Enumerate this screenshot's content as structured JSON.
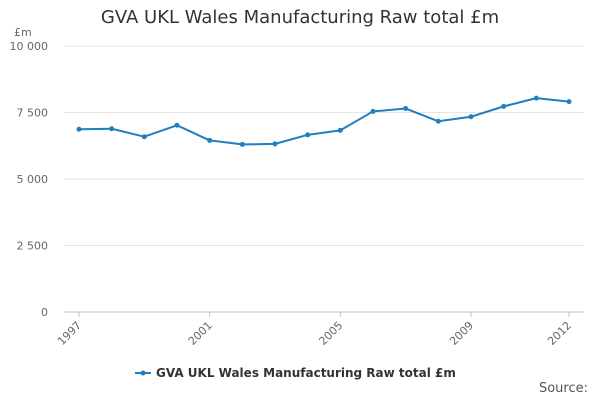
{
  "chart_data": {
    "type": "line",
    "title": "GVA UKL Wales Manufacturing Raw total £m",
    "ylabel": "£m",
    "xlabel": "",
    "x": [
      1997,
      1998,
      1999,
      2000,
      2001,
      2002,
      2003,
      2004,
      2005,
      2006,
      2007,
      2008,
      2009,
      2010,
      2011,
      2012
    ],
    "x_tick_labels": [
      "1997",
      "2001",
      "2005",
      "2009",
      "2012"
    ],
    "y_tick_labels": [
      "0",
      "2 500",
      "5 000",
      "7 500",
      "10 000"
    ],
    "y_ticks": [
      0,
      2500,
      5000,
      7500,
      10000
    ],
    "ylim": [
      0,
      10000
    ],
    "series": [
      {
        "name": "GVA UKL Wales Manufacturing Raw total £m",
        "color": "#1f7fbf",
        "values": [
          6870,
          6890,
          6590,
          7020,
          6450,
          6300,
          6320,
          6660,
          6830,
          7540,
          7650,
          7170,
          7340,
          7730,
          8040,
          7910
        ]
      }
    ],
    "legend": "bottom-center",
    "grid": true
  },
  "source_label": "Source:"
}
